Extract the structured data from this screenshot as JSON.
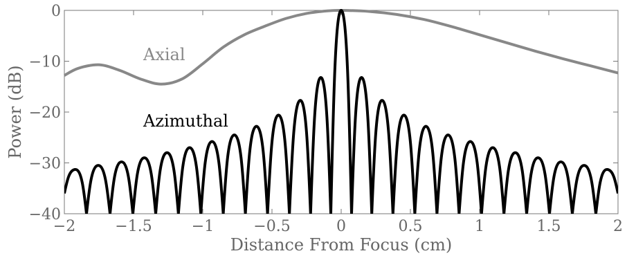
{
  "chart_data": {
    "type": "line",
    "title": "",
    "xlabel": "Distance From Focus (cm)",
    "ylabel": "Power (dB)",
    "xlim": [
      -2,
      2
    ],
    "ylim": [
      -40,
      0
    ],
    "x_ticks": [
      -2,
      -1.5,
      -1,
      -0.5,
      0,
      0.5,
      1,
      1.5,
      2
    ],
    "x_tick_labels": [
      "−2",
      "−1.5",
      "−1",
      "−0.5",
      "0",
      "0.5",
      "1",
      "1.5",
      "2"
    ],
    "y_ticks": [
      0,
      -10,
      -20,
      -30,
      -40
    ],
    "y_tick_labels": [
      "0",
      "−10",
      "−20",
      "−30",
      "−40"
    ],
    "grid": false,
    "legend": "none",
    "annotations": [
      {
        "text": "Axial",
        "color": "#888888"
      },
      {
        "text": "Azimuthal",
        "color": "#000000"
      }
    ],
    "series": [
      {
        "name": "Axial",
        "color": "#888888",
        "x": [
          -2.0,
          -1.9,
          -1.75,
          -1.6,
          -1.45,
          -1.3,
          -1.15,
          -1.0,
          -0.85,
          -0.7,
          -0.55,
          -0.4,
          -0.25,
          -0.1,
          0.0,
          0.2,
          0.4,
          0.6,
          0.8,
          1.0,
          1.2,
          1.4,
          1.6,
          1.8,
          2.0
        ],
        "y": [
          -12.8,
          -11.4,
          -10.7,
          -11.8,
          -13.5,
          -14.5,
          -13.5,
          -10.5,
          -7.2,
          -4.8,
          -3.1,
          -1.6,
          -0.6,
          -0.1,
          0.0,
          -0.2,
          -0.8,
          -1.8,
          -3.2,
          -4.8,
          -6.4,
          -8.0,
          -9.5,
          -10.9,
          -12.3
        ]
      },
      {
        "name": "Azimuthal",
        "color": "#000000",
        "x": [
          -2.0,
          -1.92,
          -1.84,
          -1.755,
          -1.67,
          -1.587,
          -1.505,
          -1.422,
          -1.34,
          -1.258,
          -1.176,
          -1.095,
          -1.014,
          -0.933,
          -0.852,
          -0.772,
          -0.692,
          -0.612,
          -0.532,
          -0.453,
          -0.374,
          -0.295,
          -0.221,
          -0.147,
          -0.075,
          0.0,
          0.075,
          0.147,
          0.221,
          0.295,
          0.374,
          0.453,
          0.532,
          0.612,
          0.692,
          0.772,
          0.852,
          0.933,
          1.014,
          1.095,
          1.176,
          1.258,
          1.34,
          1.422,
          1.505,
          1.587,
          1.67,
          1.755,
          1.84,
          1.92,
          2.0
        ],
        "y": [
          -36.0,
          -31.3,
          -40.0,
          -30.5,
          -40.0,
          -29.8,
          -40.0,
          -29.0,
          -40.0,
          -28.0,
          -40.0,
          -27.0,
          -40.0,
          -25.8,
          -40.0,
          -24.5,
          -40.0,
          -22.8,
          -40.0,
          -20.6,
          -40.0,
          -17.7,
          -40.0,
          -13.2,
          -40.0,
          0.0,
          -40.0,
          -13.2,
          -40.0,
          -17.7,
          -40.0,
          -20.6,
          -40.0,
          -22.8,
          -40.0,
          -24.5,
          -40.0,
          -25.8,
          -40.0,
          -27.0,
          -40.0,
          -28.0,
          -40.0,
          -29.0,
          -40.0,
          -29.8,
          -40.0,
          -30.5,
          -40.0,
          -31.3,
          -36.0
        ]
      }
    ]
  }
}
